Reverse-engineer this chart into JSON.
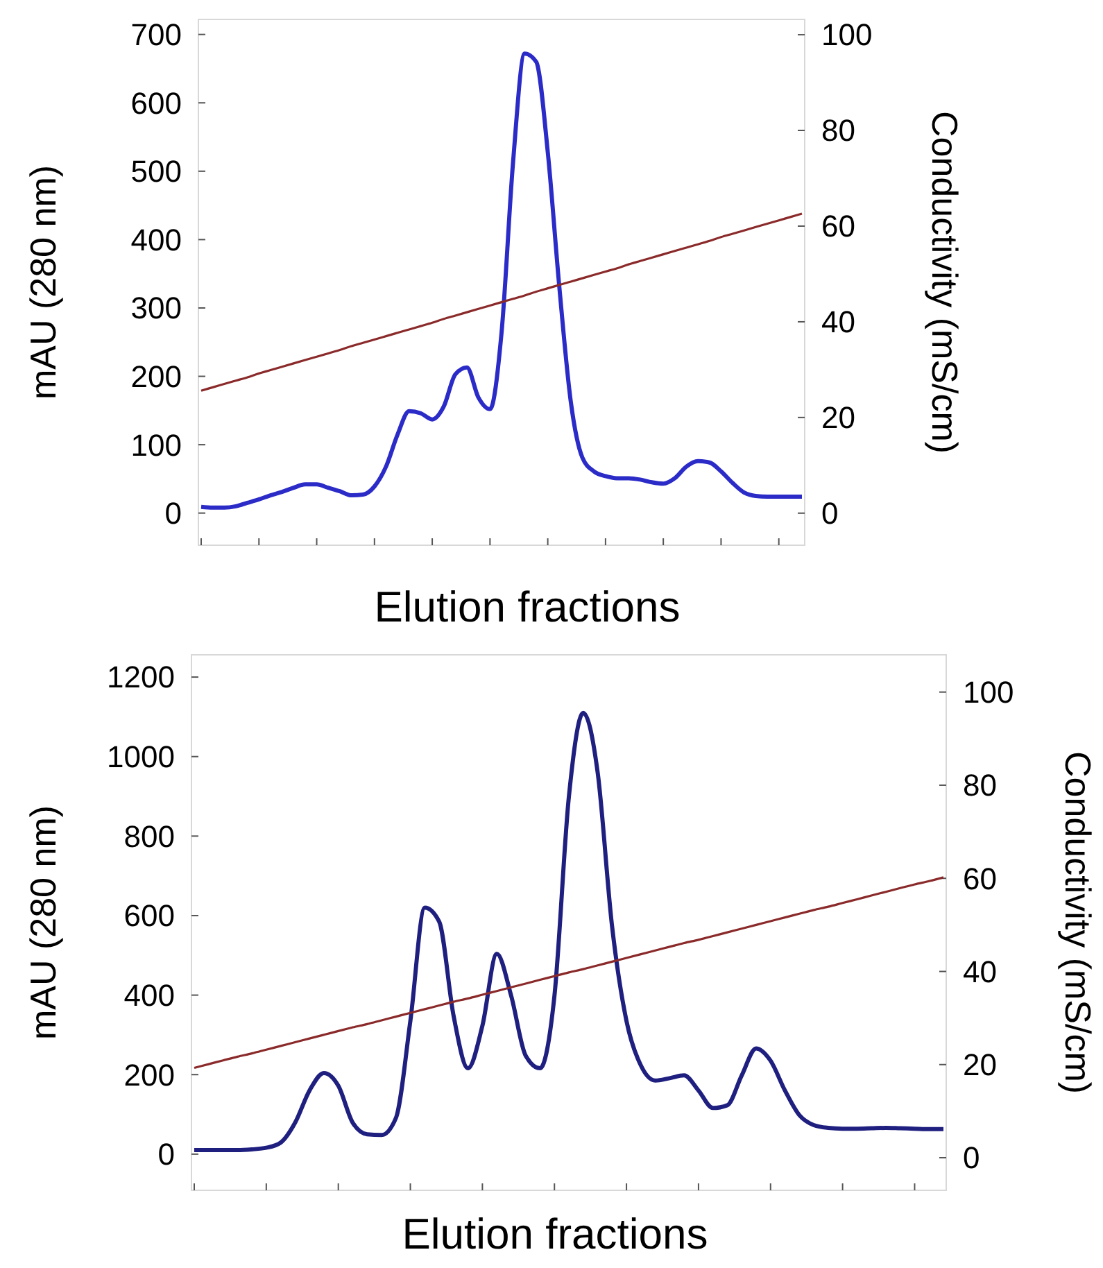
{
  "chart_data": [
    {
      "type": "line",
      "xlabel": "Elution fractions",
      "ylabel": "mAU (280 nm)",
      "y2label": "Conductivity (mS/cm)",
      "categories": [
        null,
        null,
        null,
        null,
        null,
        null,
        null,
        null,
        null,
        null,
        null,
        null,
        null,
        null,
        null,
        null,
        null,
        null,
        null,
        null,
        null,
        null,
        null,
        null,
        null,
        null,
        null,
        null,
        null,
        null,
        null,
        null,
        null,
        null,
        null,
        null,
        null,
        null,
        null,
        null,
        null,
        null,
        null,
        null,
        null,
        null,
        null,
        null,
        null,
        null,
        null,
        null,
        null
      ],
      "series": [
        {
          "color": "#2b2bc8",
          "values": [
            9,
            8,
            8,
            10,
            15,
            20,
            26,
            31,
            37,
            42,
            42,
            37,
            32,
            26,
            27,
            39,
            68,
            115,
            149,
            146,
            137,
            156,
            203,
            213,
            169,
            152,
            264,
            514,
            672,
            660,
            528,
            331,
            162,
            81,
            61,
            54,
            51,
            51,
            49,
            45,
            43,
            51,
            68,
            76,
            74,
            61,
            44,
            30,
            25,
            24,
            24,
            24,
            24
          ]
        },
        {
          "color": "#8b2a2a",
          "axis": "y2",
          "values": [
            25.6,
            26.3,
            27.0,
            27.7,
            28.4,
            29.2,
            29.9,
            30.6,
            31.3,
            32.0,
            32.7,
            33.4,
            34.1,
            34.9,
            35.6,
            36.3,
            37.0,
            37.7,
            38.4,
            39.1,
            39.8,
            40.6,
            41.3,
            42.0,
            42.7,
            43.4,
            44.1,
            44.8,
            45.5,
            46.3,
            47.0,
            47.7,
            48.4,
            49.1,
            49.8,
            50.5,
            51.2,
            52.0,
            52.7,
            53.4,
            54.1,
            54.8,
            55.5,
            56.2,
            56.9,
            57.7,
            58.4,
            59.1,
            59.8,
            60.5,
            61.2,
            61.9,
            62.6
          ]
        }
      ],
      "ylim": [
        -47,
        722
      ],
      "yticks": [
        0,
        100,
        200,
        300,
        400,
        500,
        600,
        700
      ],
      "y2lim": [
        -6.7,
        103.2
      ],
      "y2ticks": [
        0,
        20,
        40,
        60,
        80,
        100
      ],
      "grid": false,
      "line_style": "solid"
    },
    {
      "type": "line",
      "xlabel": "Elution fractions",
      "ylabel": "mAU (280 nm)",
      "y2label": "Conductivity (mS/cm)",
      "categories": [
        null,
        null,
        null,
        null,
        null,
        null,
        null,
        null,
        null,
        null,
        null,
        null,
        null,
        null,
        null,
        null,
        null,
        null,
        null,
        null,
        null,
        null,
        null,
        null,
        null,
        null,
        null,
        null,
        null,
        null,
        null,
        null,
        null,
        null,
        null,
        null,
        null,
        null,
        null,
        null,
        null,
        null,
        null,
        null,
        null,
        null,
        null,
        null,
        null,
        null,
        null,
        null,
        null
      ],
      "series": [
        {
          "color": "#1f1f80",
          "values": [
            10,
            10,
            10,
            10,
            12,
            16,
            29,
            79,
            160,
            204,
            172,
            79,
            50,
            48,
            91,
            335,
            620,
            585,
            348,
            216,
            323,
            504,
            398,
            248,
            216,
            398,
            898,
            1110,
            960,
            573,
            335,
            223,
            185,
            191,
            198,
            160,
            116,
            123,
            198,
            266,
            235,
            160,
            98,
            73,
            66,
            64,
            64,
            65,
            66,
            65,
            64,
            63,
            63
          ]
        },
        {
          "color": "#8b2a2a",
          "axis": "y2",
          "values": [
            19.3,
            20.1,
            20.9,
            21.7,
            22.4,
            23.2,
            24.0,
            24.8,
            25.6,
            26.4,
            27.2,
            28.0,
            28.7,
            29.5,
            30.3,
            31.1,
            31.9,
            32.7,
            33.5,
            34.2,
            35.0,
            35.8,
            36.6,
            37.4,
            38.2,
            39.0,
            39.8,
            40.5,
            41.3,
            42.1,
            42.9,
            43.7,
            44.5,
            45.3,
            46.1,
            46.8,
            47.6,
            48.4,
            49.2,
            50.0,
            50.8,
            51.6,
            52.4,
            53.2,
            53.9,
            54.7,
            55.5,
            56.3,
            57.1,
            57.9,
            58.7,
            59.4,
            60.2
          ]
        }
      ],
      "ylim": [
        -91,
        1256
      ],
      "yticks": [
        0,
        200,
        400,
        600,
        800,
        1000,
        1200
      ],
      "y2lim": [
        -7,
        108
      ],
      "y2ticks": [
        0,
        20,
        40,
        60,
        80,
        100
      ],
      "grid": false,
      "line_style": "solid"
    }
  ]
}
